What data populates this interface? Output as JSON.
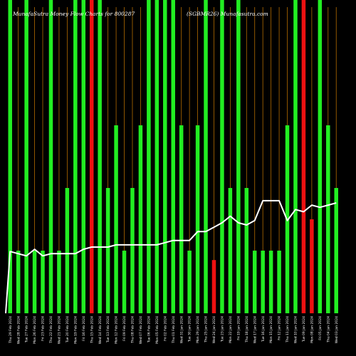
{
  "chart_data": {
    "type": "bar",
    "title": "MunafaSutra Money Flow Charts for 800287",
    "subtitle": "(SGBMR26) Munafasutra.com",
    "colors": {
      "background": "#000000",
      "grid": "#b36b00",
      "up_bar": "#22ee22",
      "down_bar": "#ee1111",
      "line": "#ffffff",
      "text": "#ffffff"
    },
    "categories": [
      "Thu 29 Feb 2024",
      "Wed 28 Feb 2024",
      "Tue 27 Feb 2024",
      "Mon 26 Feb 2024",
      "Fri 23 Feb 2024",
      "Thu 22 Feb 2024",
      "Wed 21 Feb 2024",
      "Tue 20 Feb 2024",
      "Mon 19 Feb 2024",
      "Fri 16 Feb 2024",
      "Thu 15 Feb 2024",
      "Wed 14 Feb 2024",
      "Tue 13 Feb 2024",
      "Mon 12 Feb 2024",
      "Fri 09 Feb 2024",
      "Thu 08 Feb 2024",
      "Wed 07 Feb 2024",
      "Tue 06 Feb 2024",
      "Mon 05 Feb 2024",
      "Fri 02 Feb 2024",
      "Thu 01 Feb 2024",
      "Wed 31 Jan 2024",
      "Tue 30 Jan 2024",
      "Mon 29 Jan 2024",
      "Thu 25 Jan 2024",
      "Wed 24 Jan 2024",
      "Tue 23 Jan 2024",
      "Mon 22 Jan 2024",
      "Fri 19 Jan 2024",
      "Thu 18 Jan 2024",
      "Wed 17 Jan 2024",
      "Tue 16 Jan 2024",
      "Mon 15 Jan 2024",
      "Fri 12 Jan 2024",
      "Thu 11 Jan 2024",
      "Wed 10 Jan 2024",
      "Tue 09 Jan 2024",
      "Mon 08 Jan 2024",
      "Fri 05 Jan 2024",
      "Thu 04 Jan 2024",
      "Wed 03 Jan 2024"
    ],
    "bars": [
      {
        "value": 100,
        "color": "up"
      },
      {
        "value": 20,
        "color": "up"
      },
      {
        "value": 100,
        "color": "up"
      },
      {
        "value": 20,
        "color": "up"
      },
      {
        "value": 20,
        "color": "up"
      },
      {
        "value": 100,
        "color": "up"
      },
      {
        "value": 20,
        "color": "up"
      },
      {
        "value": 40,
        "color": "up"
      },
      {
        "value": 100,
        "color": "up"
      },
      {
        "value": 100,
        "color": "up"
      },
      {
        "value": 100,
        "color": "down"
      },
      {
        "value": 100,
        "color": "up"
      },
      {
        "value": 40,
        "color": "up"
      },
      {
        "value": 60,
        "color": "up"
      },
      {
        "value": 20,
        "color": "up"
      },
      {
        "value": 40,
        "color": "up"
      },
      {
        "value": 60,
        "color": "up"
      },
      {
        "value": 100,
        "color": "up"
      },
      {
        "value": 100,
        "color": "up"
      },
      {
        "value": 100,
        "color": "up"
      },
      {
        "value": 100,
        "color": "up"
      },
      {
        "value": 60,
        "color": "up"
      },
      {
        "value": 20,
        "color": "up"
      },
      {
        "value": 60,
        "color": "up"
      },
      {
        "value": 100,
        "color": "up"
      },
      {
        "value": 17,
        "color": "down"
      },
      {
        "value": 100,
        "color": "up"
      },
      {
        "value": 40,
        "color": "up"
      },
      {
        "value": 100,
        "color": "up"
      },
      {
        "value": 40,
        "color": "up"
      },
      {
        "value": 20,
        "color": "up"
      },
      {
        "value": 20,
        "color": "up"
      },
      {
        "value": 20,
        "color": "up"
      },
      {
        "value": 20,
        "color": "up"
      },
      {
        "value": 60,
        "color": "up"
      },
      {
        "value": 100,
        "color": "up"
      },
      {
        "value": 100,
        "color": "down"
      },
      {
        "value": 30,
        "color": "down"
      },
      {
        "value": 100,
        "color": "up"
      },
      {
        "value": 60,
        "color": "up"
      },
      {
        "value": 40,
        "color": "up"
      }
    ],
    "line_values": [
      28,
      27,
      26,
      29,
      26,
      27,
      27,
      27,
      27,
      29,
      30,
      30,
      30,
      31,
      31,
      31,
      31,
      31,
      31,
      32,
      33,
      33,
      33,
      37,
      37,
      39,
      41,
      44,
      41,
      40,
      42,
      51,
      51,
      51,
      42,
      47,
      46,
      49,
      48,
      49,
      50
    ],
    "ylim": [
      0,
      100
    ],
    "grid": "vertical"
  }
}
